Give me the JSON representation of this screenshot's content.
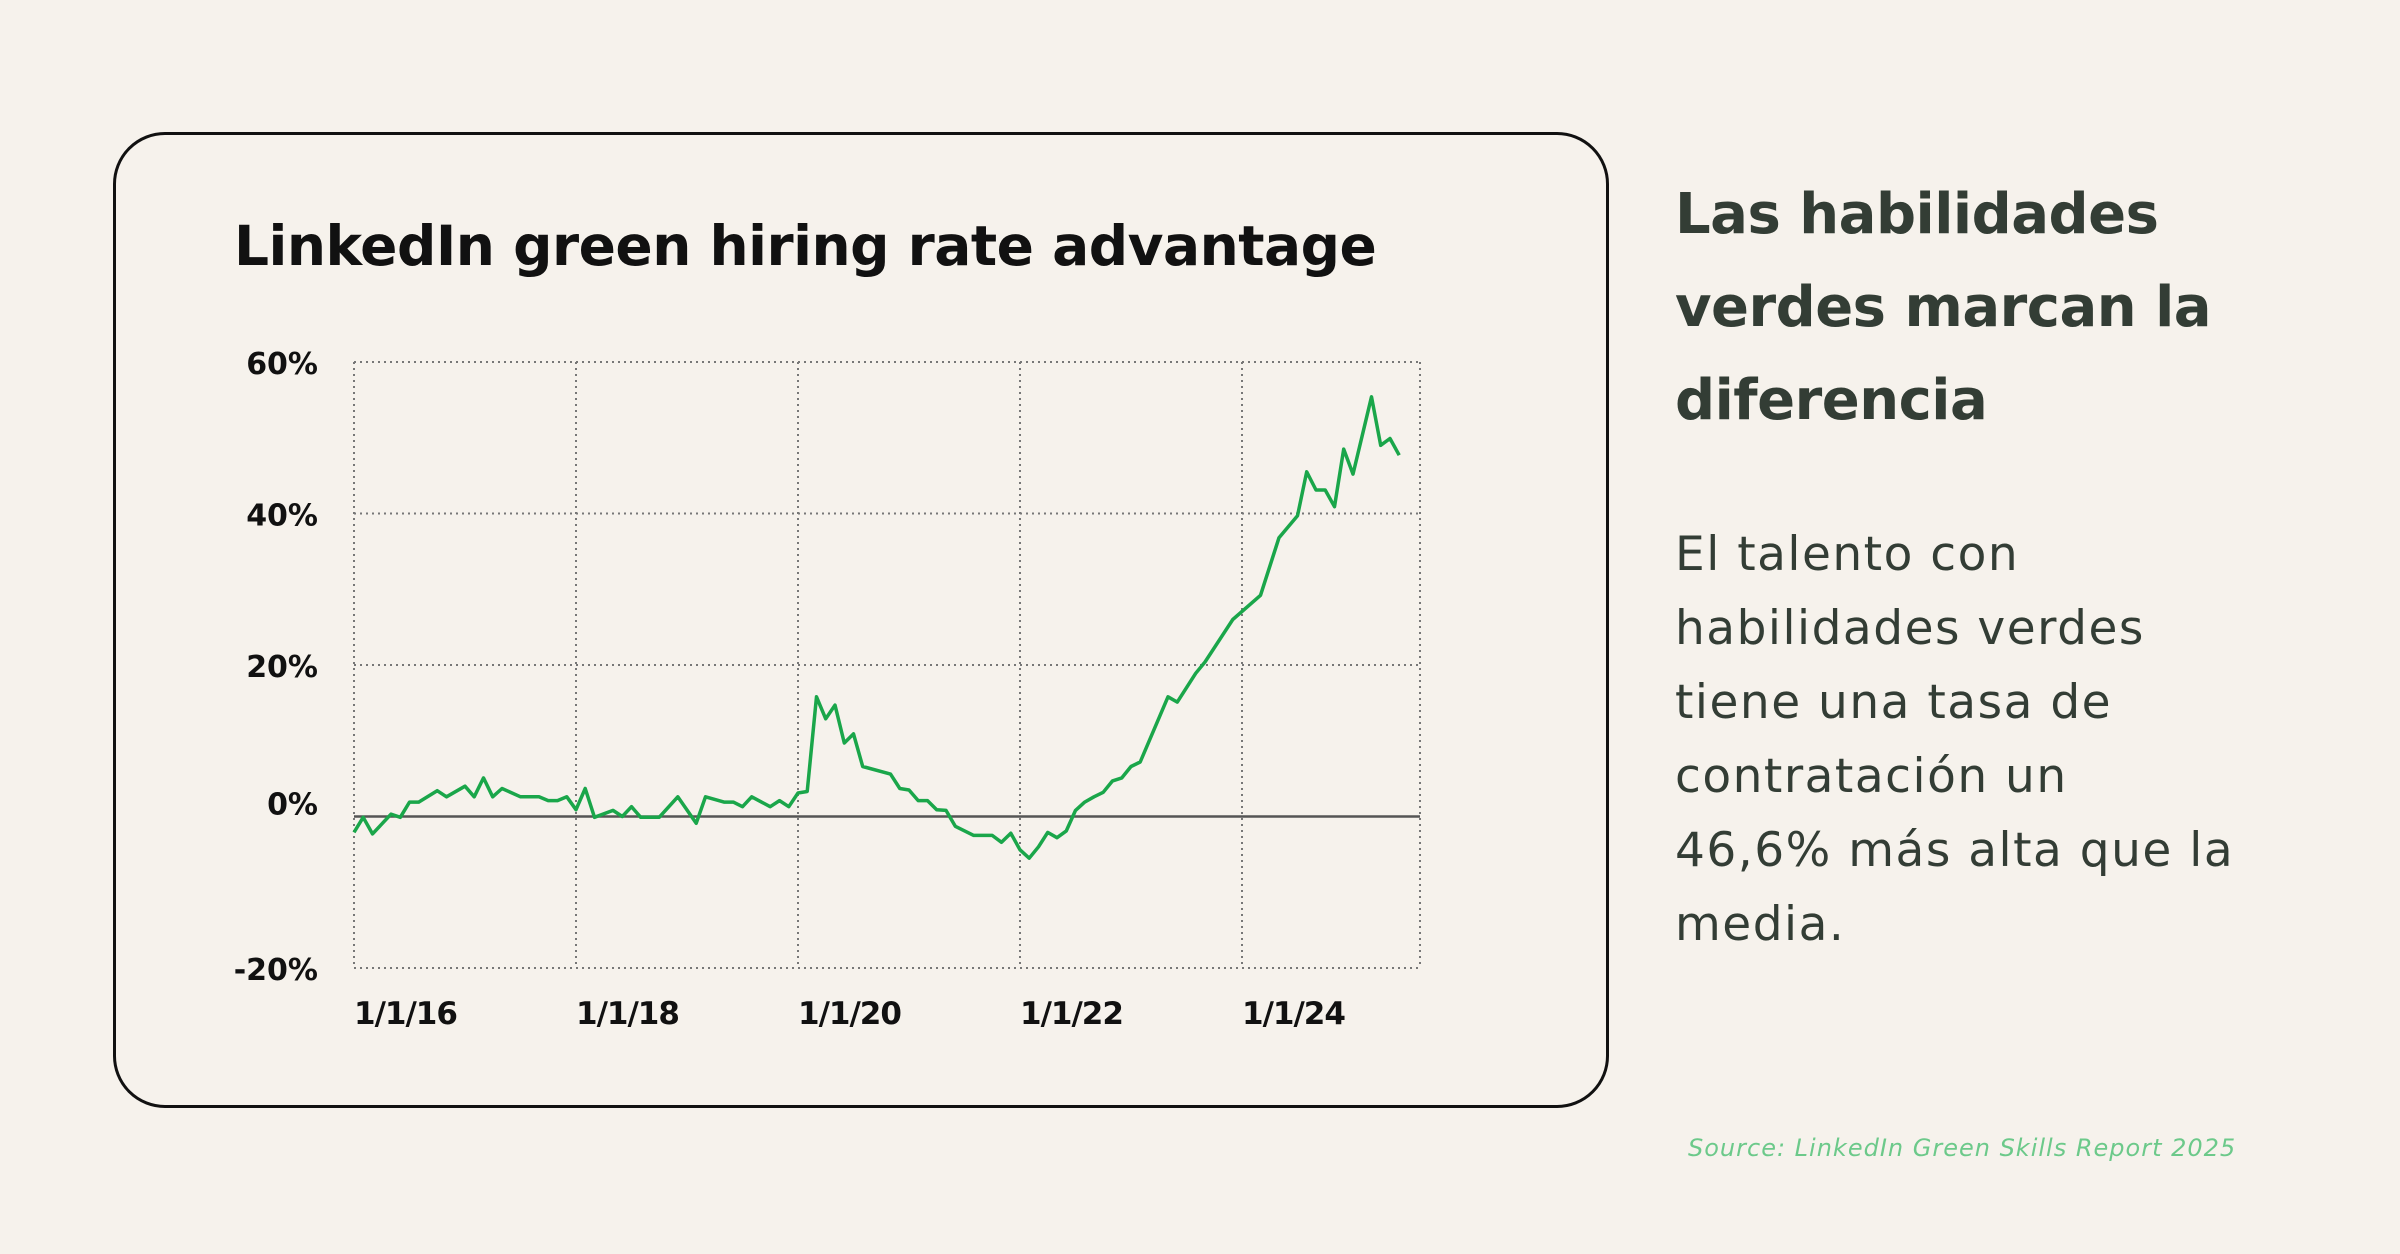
{
  "card": {
    "title": "LinkedIn green hiring rate advantage"
  },
  "side": {
    "heading": "Las habilidades verdes marcan la diferencia",
    "body": "El talento con habilidades verdes tiene una tasa de contratación un 46,6% más alta que la media.",
    "source": "Source: LinkedIn Green Skills Report 2025"
  },
  "chart_data": {
    "type": "line",
    "title": "LinkedIn green hiring rate advantage",
    "xlabel": "",
    "ylabel": "",
    "ylim": [
      -20,
      60
    ],
    "xlim": [
      "2016-01",
      "2025-08"
    ],
    "y_ticks": [
      {
        "value": 60,
        "label": "60%"
      },
      {
        "value": 40,
        "label": "40%"
      },
      {
        "value": 20,
        "label": "20%"
      },
      {
        "value": 0,
        "label": "0%"
      },
      {
        "value": -20,
        "label": "-20%"
      }
    ],
    "x_ticks": [
      {
        "value": "2016-01",
        "label": "1/1/16"
      },
      {
        "value": "2018-01",
        "label": "1/1/18"
      },
      {
        "value": "2020-01",
        "label": "1/1/20"
      },
      {
        "value": "2022-01",
        "label": "1/1/22"
      },
      {
        "value": "2024-01",
        "label": "1/1/24"
      }
    ],
    "grid": true,
    "grid_style": "dotted",
    "line_color": "#1aa64a",
    "zero_line_color": "#555555",
    "series": [
      {
        "x": [
          "2016-01",
          "2016-02",
          "2016-03",
          "2016-05",
          "2016-06",
          "2016-07",
          "2016-08",
          "2016-10",
          "2016-11",
          "2017-01",
          "2017-02",
          "2017-03",
          "2017-04",
          "2017-05",
          "2017-07",
          "2017-09",
          "2017-10",
          "2017-11",
          "2017-12",
          "2018-01",
          "2018-02",
          "2018-03",
          "2018-05",
          "2018-06",
          "2018-07",
          "2018-08",
          "2018-10",
          "2018-12",
          "2019-02",
          "2019-03",
          "2019-05",
          "2019-06",
          "2019-07",
          "2019-08",
          "2019-10",
          "2019-11",
          "2019-12",
          "2020-01",
          "2020-02",
          "2020-03",
          "2020-04",
          "2020-05",
          "2020-06",
          "2020-07",
          "2020-08",
          "2020-11",
          "2020-12",
          "2021-01",
          "2021-02",
          "2021-03",
          "2021-04",
          "2021-05",
          "2021-06",
          "2021-08",
          "2021-10",
          "2021-11",
          "2021-12",
          "2022-01",
          "2022-02",
          "2022-03",
          "2022-04",
          "2022-05",
          "2022-06",
          "2022-07",
          "2022-08",
          "2022-09",
          "2022-10",
          "2022-11",
          "2022-12",
          "2023-01",
          "2023-02",
          "2023-05",
          "2023-06",
          "2023-08",
          "2023-09",
          "2023-12",
          "2024-03",
          "2024-05",
          "2024-07",
          "2024-08",
          "2024-09",
          "2024-10",
          "2024-11",
          "2024-12",
          "2025-01",
          "2025-03",
          "2025-04",
          "2025-05",
          "2025-06"
        ],
        "values": [
          -2.1,
          -0.1,
          -2.3,
          0.3,
          -0.1,
          1.9,
          1.9,
          3.4,
          2.6,
          4.0,
          2.6,
          5.1,
          2.6,
          3.7,
          2.6,
          2.6,
          2.1,
          2.1,
          2.6,
          0.9,
          3.7,
          -0.1,
          0.8,
          0.0,
          1.3,
          -0.1,
          -0.1,
          2.6,
          -0.9,
          2.6,
          1.9,
          1.9,
          1.3,
          2.6,
          1.3,
          2.1,
          1.3,
          3.1,
          3.3,
          15.8,
          12.9,
          14.7,
          9.7,
          10.9,
          6.6,
          5.6,
          3.7,
          3.5,
          2.1,
          2.1,
          0.9,
          0.8,
          -1.3,
          -2.5,
          -2.5,
          -3.4,
          -2.2,
          -4.4,
          -5.5,
          -4.0,
          -2.1,
          -2.8,
          -1.9,
          0.8,
          1.9,
          2.6,
          3.2,
          4.7,
          5.1,
          6.6,
          7.2,
          15.8,
          15.1,
          18.9,
          20.4,
          26.0,
          29.2,
          36.8,
          39.7,
          45.5,
          43.1,
          43.1,
          40.9,
          48.5,
          45.2,
          55.4,
          49.0,
          49.9,
          47.7
        ]
      }
    ]
  }
}
